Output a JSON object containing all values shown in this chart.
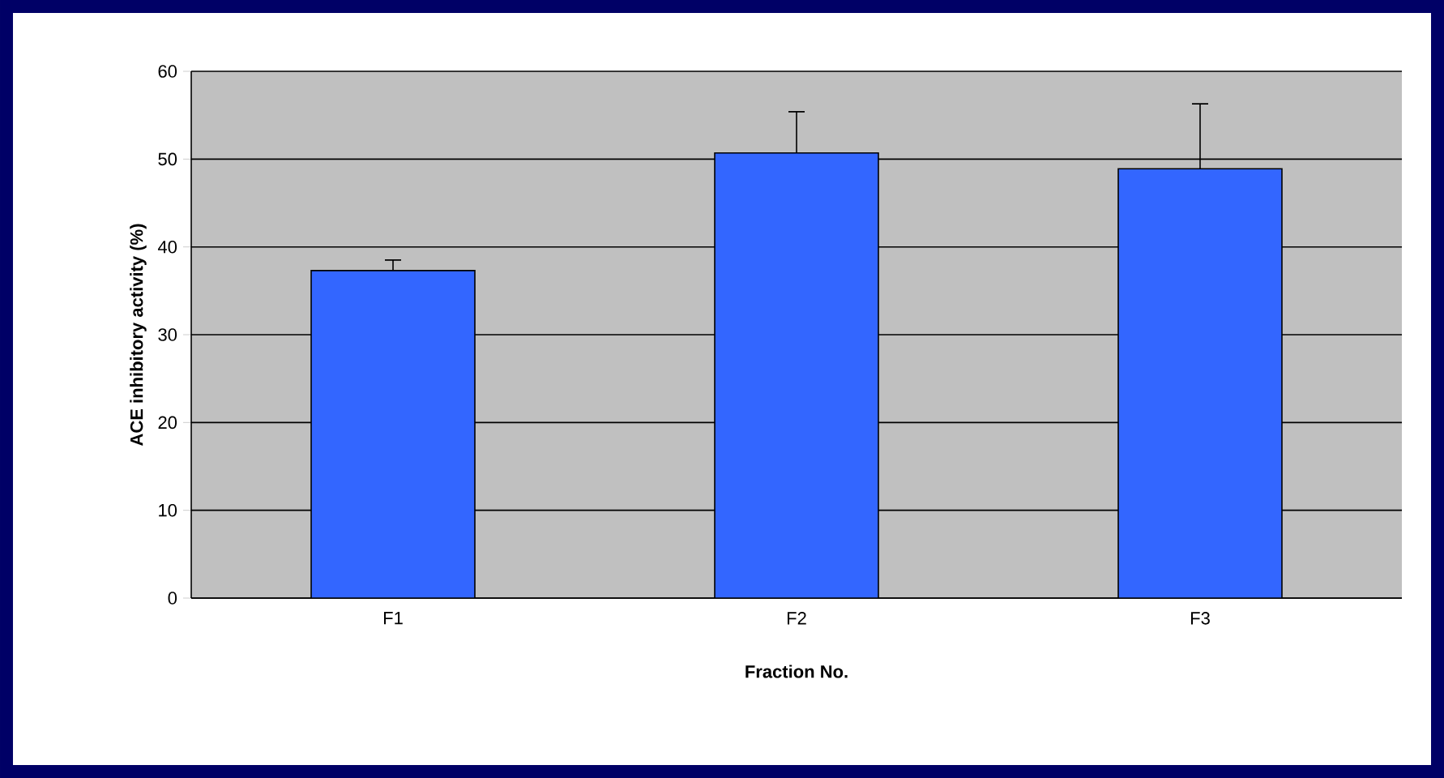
{
  "chart_data": {
    "type": "bar",
    "xlabel": "Fraction No.",
    "ylabel": "ACE inhibitory activity (%)",
    "categories": [
      "F1",
      "F2",
      "F3"
    ],
    "values": [
      37.3,
      50.7,
      48.9
    ],
    "errors": [
      [
        37.3,
        38.5
      ],
      [
        50.7,
        55.4
      ],
      [
        48.9,
        56.3
      ]
    ],
    "color": "#3366ff",
    "ylim": [
      0,
      60
    ],
    "yticks": [
      0,
      10,
      20,
      30,
      40,
      50,
      60
    ],
    "grid": "y"
  }
}
